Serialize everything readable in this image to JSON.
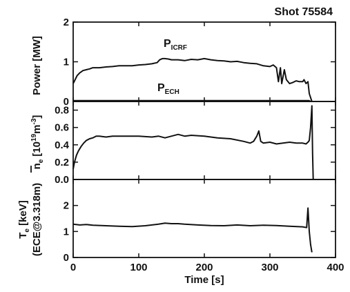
{
  "chart_data": [
    {
      "type": "line",
      "ylabel": "Power [MW]",
      "ylim": [
        0,
        2
      ],
      "yticks": [
        0,
        1,
        2
      ],
      "xlim": [
        0,
        400
      ],
      "annotations": [
        {
          "main": "P",
          "sub": "ICRF"
        },
        {
          "main": "P",
          "sub": "ECH"
        }
      ],
      "series": [
        {
          "x": [
            0,
            3,
            6,
            10,
            15,
            20,
            25,
            30,
            40,
            50,
            60,
            70,
            80,
            90,
            100,
            110,
            120,
            128,
            132,
            136,
            140,
            145,
            150,
            160,
            170,
            180,
            190,
            200,
            210,
            220,
            230,
            240,
            250,
            260,
            270,
            280,
            290,
            300,
            305,
            310,
            313,
            316,
            318,
            322,
            325,
            330,
            335,
            340,
            345,
            350,
            352,
            355,
            358,
            360,
            362,
            364
          ],
          "values": [
            0.45,
            0.55,
            0.65,
            0.72,
            0.78,
            0.8,
            0.82,
            0.85,
            0.85,
            0.87,
            0.88,
            0.9,
            0.9,
            0.9,
            0.92,
            0.93,
            0.95,
            0.98,
            1.05,
            1.08,
            1.08,
            1.07,
            1.05,
            1.05,
            1.03,
            1.06,
            1.05,
            1.08,
            1.05,
            1.03,
            1.02,
            1.0,
            1.01,
            0.98,
            0.96,
            0.95,
            0.9,
            0.88,
            0.92,
            0.85,
            0.5,
            0.85,
            0.45,
            0.8,
            0.55,
            0.45,
            0.48,
            0.52,
            0.5,
            0.5,
            0.55,
            0.45,
            0.5,
            0.2,
            0.1,
            0.0
          ]
        },
        {
          "x": [
            0,
            100,
            200,
            300,
            360,
            362
          ],
          "values": [
            0.02,
            0.02,
            0.02,
            0.02,
            0.02,
            0.0
          ]
        }
      ]
    },
    {
      "type": "line",
      "ylabel_main": "n",
      "ylabel_sub": "e",
      "ylabel_unit": "[10",
      "ylabel_exp1": "19",
      "ylabel_unit2": "m",
      "ylabel_exp2": "-3",
      "ylabel_close": "]",
      "ylim": [
        0,
        0.9
      ],
      "yticks": [
        "0.0",
        "0.2",
        "0.4",
        "0.6",
        "0.8"
      ],
      "xlim": [
        0,
        400
      ],
      "series": [
        {
          "x": [
            0,
            2,
            5,
            8,
            12,
            16,
            20,
            25,
            30,
            35,
            40,
            50,
            60,
            80,
            100,
            120,
            130,
            140,
            150,
            160,
            170,
            180,
            200,
            220,
            240,
            260,
            270,
            275,
            280,
            283,
            286,
            290,
            300,
            310,
            320,
            330,
            340,
            350,
            355,
            358,
            360,
            362,
            364,
            365,
            366
          ],
          "values": [
            0.12,
            0.2,
            0.28,
            0.33,
            0.38,
            0.42,
            0.45,
            0.47,
            0.48,
            0.5,
            0.5,
            0.49,
            0.5,
            0.5,
            0.5,
            0.49,
            0.5,
            0.48,
            0.5,
            0.52,
            0.5,
            0.51,
            0.5,
            0.48,
            0.47,
            0.44,
            0.42,
            0.44,
            0.5,
            0.56,
            0.44,
            0.42,
            0.43,
            0.41,
            0.42,
            0.43,
            0.42,
            0.42,
            0.41,
            0.43,
            0.45,
            0.6,
            0.85,
            0.3,
            0.0
          ]
        }
      ]
    },
    {
      "type": "line",
      "ylabel_line1": "T",
      "ylabel_line1_sub": "e",
      "ylabel_line1_rest": " [keV]",
      "ylabel_line2": "(ECE@3.318m)",
      "ylim": [
        0,
        3
      ],
      "yticks": [
        0,
        1,
        2
      ],
      "xlim": [
        0,
        400
      ],
      "xlabel": "Time [s]",
      "xticks": [
        0,
        100,
        200,
        300,
        400
      ],
      "series": [
        {
          "x": [
            0,
            10,
            20,
            30,
            50,
            70,
            90,
            110,
            130,
            140,
            150,
            160,
            170,
            190,
            210,
            230,
            250,
            270,
            290,
            310,
            330,
            350,
            356,
            358,
            360,
            362,
            364
          ],
          "values": [
            1.28,
            1.25,
            1.27,
            1.24,
            1.22,
            1.2,
            1.19,
            1.22,
            1.28,
            1.32,
            1.3,
            1.3,
            1.28,
            1.25,
            1.23,
            1.22,
            1.25,
            1.22,
            1.24,
            1.23,
            1.2,
            1.18,
            1.15,
            1.9,
            1.0,
            0.5,
            0.2
          ]
        }
      ]
    }
  ],
  "title": "Shot 75584"
}
